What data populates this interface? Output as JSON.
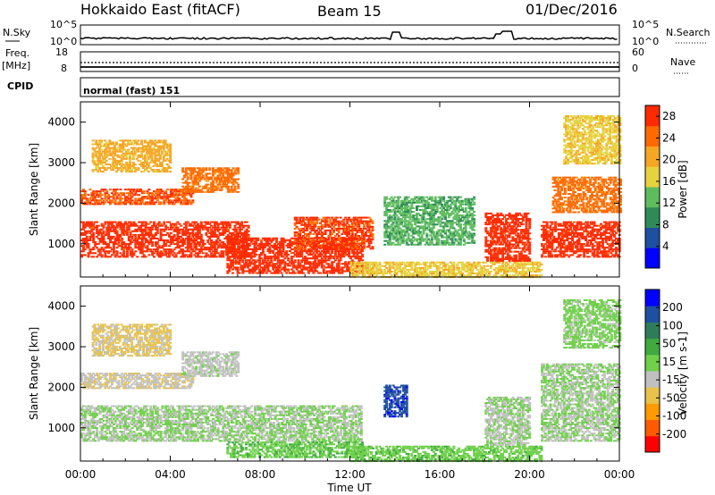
{
  "header": {
    "station": "Hokkaido East (fitACF)",
    "beam": "Beam 15",
    "date": "01/Dec/2016"
  },
  "top_panel": {
    "left_label": "N.Sky",
    "right_label": "N.Search",
    "left_ticks": [
      "10^5",
      "10^0"
    ],
    "right_ticks": [
      "10^5",
      "10^0"
    ]
  },
  "freq_panel": {
    "left_label_1": "Freq.",
    "left_label_2": "[MHz]",
    "left_ticks": [
      "18",
      "8"
    ],
    "right_label": "Nave",
    "right_ticks": [
      "60",
      "0"
    ]
  },
  "cpid_panel": {
    "label": "CPID",
    "text": "normal (fast) 151"
  },
  "x_axis": {
    "label": "Time UT",
    "ticks": [
      "00:00",
      "04:00",
      "08:00",
      "12:00",
      "16:00",
      "20:00",
      "00:00"
    ]
  },
  "colors": {
    "power_scale": [
      "#0000ff",
      "#1f4fa0",
      "#2e8b57",
      "#5ebc5e",
      "#e6d23c",
      "#f5a623",
      "#ff6a00",
      "#ff2a00"
    ],
    "velocity_scale": [
      "#ff0000",
      "#ff5a00",
      "#ff9a00",
      "#e8c24a",
      "#c0c0c0",
      "#6fd04a",
      "#3faa3f",
      "#2e7d5a",
      "#1e4fa0",
      "#0000ff"
    ]
  },
  "chart_data": [
    {
      "type": "heatmap",
      "title": "",
      "ylabel": "Slant Range [km]",
      "xlabel": "",
      "ylim": [
        180,
        4500
      ],
      "x_ticks": [
        "00:00",
        "04:00",
        "08:00",
        "12:00",
        "16:00",
        "20:00",
        "00:00"
      ],
      "y_ticks": [
        "1000",
        "2000",
        "3000",
        "4000"
      ],
      "colorbar": {
        "label": "Power [dB]",
        "ticks": [
          "4",
          "8",
          "12",
          "16",
          "20",
          "24",
          "28"
        ],
        "range": [
          0,
          30
        ]
      },
      "regions": [
        {
          "t0": 0.0,
          "t1": 7.5,
          "r0": 700,
          "r1": 1600,
          "value": 28
        },
        {
          "t0": 0.0,
          "t1": 5.0,
          "r0": 2000,
          "r1": 2400,
          "value": 26
        },
        {
          "t0": 4.5,
          "t1": 7.0,
          "r0": 2300,
          "r1": 2900,
          "value": 24
        },
        {
          "t0": 0.5,
          "t1": 4.0,
          "r0": 2800,
          "r1": 3600,
          "value": 20
        },
        {
          "t0": 6.5,
          "t1": 12.5,
          "r0": 300,
          "r1": 1200,
          "value": 28
        },
        {
          "t0": 9.5,
          "t1": 13.0,
          "r0": 900,
          "r1": 1700,
          "value": 27
        },
        {
          "t0": 12.0,
          "t1": 20.5,
          "r0": 200,
          "r1": 600,
          "value": 18
        },
        {
          "t0": 18.0,
          "t1": 20.0,
          "r0": 600,
          "r1": 1800,
          "value": 28
        },
        {
          "t0": 20.5,
          "t1": 24.0,
          "r0": 700,
          "r1": 1600,
          "value": 28
        },
        {
          "t0": 21.0,
          "t1": 24.0,
          "r0": 1800,
          "r1": 2700,
          "value": 24
        },
        {
          "t0": 21.5,
          "t1": 24.0,
          "r0": 3000,
          "r1": 4200,
          "value": 18
        },
        {
          "t0": 13.5,
          "t1": 17.5,
          "r0": 1000,
          "r1": 2200,
          "value": 12
        }
      ]
    },
    {
      "type": "heatmap",
      "title": "",
      "ylabel": "Slant Range [km]",
      "xlabel": "Time UT",
      "ylim": [
        180,
        4500
      ],
      "x_ticks": [
        "00:00",
        "04:00",
        "08:00",
        "12:00",
        "16:00",
        "20:00",
        "00:00"
      ],
      "y_ticks": [
        "1000",
        "2000",
        "3000",
        "4000"
      ],
      "colorbar": {
        "label": "Velocity [m s-1]",
        "ticks": [
          "200",
          "100",
          "50",
          "15",
          "-15",
          "-50",
          "-100",
          "-200"
        ],
        "range": [
          -250,
          250
        ]
      },
      "regions": [
        {
          "t0": 0.0,
          "t1": 12.5,
          "r0": 700,
          "r1": 1600,
          "value": 0
        },
        {
          "t0": 0.0,
          "t1": 5.0,
          "r0": 2000,
          "r1": 2400,
          "value": -40
        },
        {
          "t0": 4.5,
          "t1": 7.0,
          "r0": 2300,
          "r1": 2900,
          "value": -20
        },
        {
          "t0": 0.5,
          "t1": 4.0,
          "r0": 2800,
          "r1": 3600,
          "value": -60
        },
        {
          "t0": 6.5,
          "t1": 12.5,
          "r0": 300,
          "r1": 700,
          "value": 40
        },
        {
          "t0": 12.0,
          "t1": 20.5,
          "r0": 200,
          "r1": 600,
          "value": 30
        },
        {
          "t0": 13.5,
          "t1": 14.5,
          "r0": 1300,
          "r1": 2100,
          "value": 180
        },
        {
          "t0": 18.0,
          "t1": 20.0,
          "r0": 600,
          "r1": 1800,
          "value": -5
        },
        {
          "t0": 20.5,
          "t1": 24.0,
          "r0": 700,
          "r1": 2600,
          "value": 0
        },
        {
          "t0": 21.5,
          "t1": 24.0,
          "r0": 3000,
          "r1": 4200,
          "value": 20
        }
      ]
    }
  ]
}
